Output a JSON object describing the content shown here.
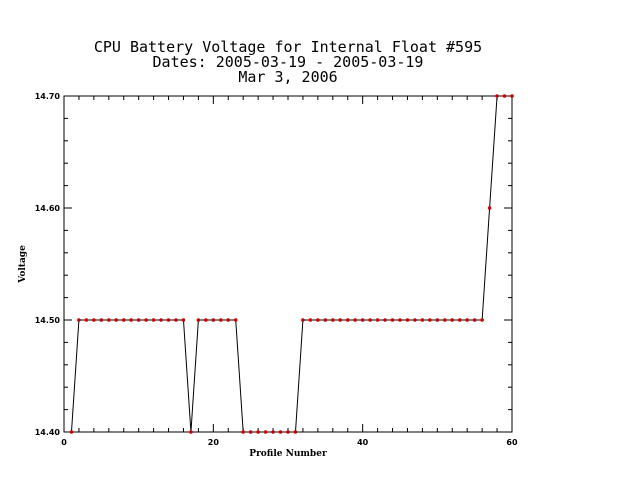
{
  "chart_data": {
    "type": "line",
    "title_lines": [
      "CPU Battery Voltage for Internal Float #595",
      "Dates:  2005-03-19 -  2005-03-19",
      "Mar  3, 2006"
    ],
    "xlabel": "Profile Number",
    "ylabel": "Voltage",
    "xlim": [
      0,
      60
    ],
    "ylim": [
      14.4,
      14.7
    ],
    "x_ticks": [
      0,
      20,
      40,
      60
    ],
    "y_ticks": [
      14.4,
      14.5,
      14.6,
      14.7
    ],
    "y_tick_labels": [
      "14.40",
      "14.50",
      "14.60",
      "14.70"
    ],
    "x_minor_step": 2,
    "y_minor_step": 0.02,
    "grid": false,
    "line_color": "#000000",
    "marker_color": "#cc0000",
    "x": [
      1,
      2,
      3,
      4,
      5,
      6,
      7,
      8,
      9,
      10,
      11,
      12,
      13,
      14,
      15,
      16,
      17,
      18,
      19,
      20,
      21,
      22,
      23,
      24,
      25,
      26,
      27,
      28,
      29,
      30,
      31,
      32,
      33,
      34,
      35,
      36,
      37,
      38,
      39,
      40,
      41,
      42,
      43,
      44,
      45,
      46,
      47,
      48,
      49,
      50,
      51,
      52,
      53,
      54,
      55,
      56,
      57,
      58,
      59,
      60
    ],
    "values": [
      14.4,
      14.5,
      14.5,
      14.5,
      14.5,
      14.5,
      14.5,
      14.5,
      14.5,
      14.5,
      14.5,
      14.5,
      14.5,
      14.5,
      14.5,
      14.5,
      14.4,
      14.5,
      14.5,
      14.5,
      14.5,
      14.5,
      14.5,
      14.4,
      14.4,
      14.4,
      14.4,
      14.4,
      14.4,
      14.4,
      14.4,
      14.5,
      14.5,
      14.5,
      14.5,
      14.5,
      14.5,
      14.5,
      14.5,
      14.5,
      14.5,
      14.5,
      14.5,
      14.5,
      14.5,
      14.5,
      14.5,
      14.5,
      14.5,
      14.5,
      14.5,
      14.5,
      14.5,
      14.5,
      14.5,
      14.5,
      14.6,
      14.7,
      14.7,
      14.7
    ]
  }
}
